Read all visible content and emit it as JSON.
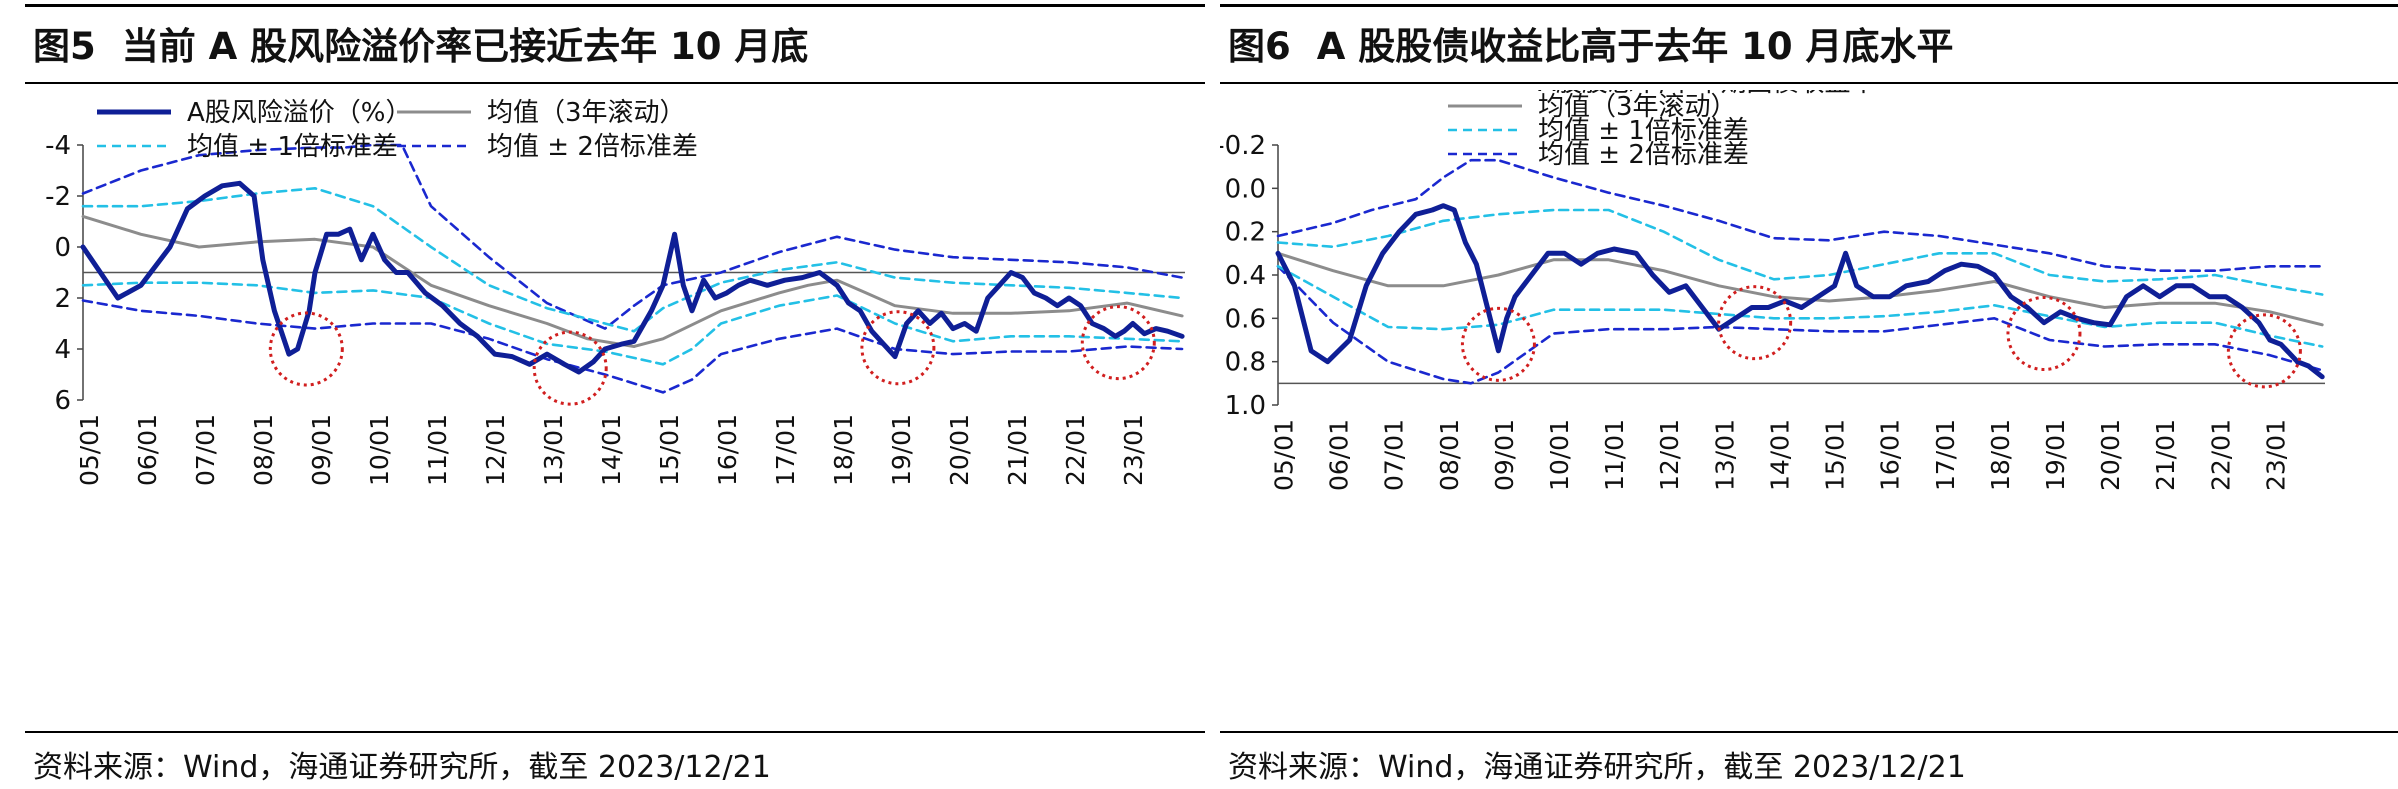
{
  "figures": [
    {
      "number": "图5",
      "title": "当前 A 股风险溢价率已接近去年 10 月底",
      "source": "资料来源：Wind，海通证券研究所，截至 2023/12/21"
    },
    {
      "number": "图6",
      "title": "A 股股债收益比高于去年 10 月底水平",
      "source": "资料来源：Wind，海通证券研究所，截至 2023/12/21"
    }
  ],
  "chart_data": [
    {
      "type": "line",
      "title": "当前 A 股风险溢价率已接近去年 10 月底",
      "y_inverted": true,
      "ylim": [
        -4,
        6
      ],
      "yticks": [
        -4,
        -2,
        0,
        2,
        4,
        6
      ],
      "ytick_labels": [
        "-4",
        "-2",
        "0",
        "2",
        "4",
        "6"
      ],
      "reference_line": 1,
      "xlim": [
        2005,
        2024
      ],
      "xtick_labels": [
        "05/01",
        "06/01",
        "07/01",
        "08/01",
        "09/01",
        "10/01",
        "11/01",
        "12/01",
        "13/01",
        "14/01",
        "15/01",
        "16/01",
        "17/01",
        "18/01",
        "19/01",
        "20/01",
        "21/01",
        "22/01",
        "23/01"
      ],
      "colors": {
        "main": "#0f1f96",
        "mean": "#8c8c8c",
        "sd1": "#23c0e6",
        "sd2": "#1a28cf",
        "circle": "#d11f1f"
      },
      "highlight_circles": [
        {
          "x": 2008.85,
          "y": 4.0
        },
        {
          "x": 2013.4,
          "y": 4.75
        },
        {
          "x": 2019.05,
          "y": 3.95
        },
        {
          "x": 2022.85,
          "y": 3.75
        }
      ],
      "series": [
        {
          "name": "A股风险溢价（%）",
          "role": "main",
          "x": [
            2005.0,
            2005.3,
            2005.6,
            2006.0,
            2006.5,
            2006.8,
            2007.1,
            2007.4,
            2007.7,
            2007.95,
            2008.1,
            2008.3,
            2008.55,
            2008.7,
            2008.9,
            2009.0,
            2009.2,
            2009.4,
            2009.6,
            2009.8,
            2010.0,
            2010.2,
            2010.4,
            2010.6,
            2010.9,
            2011.2,
            2011.5,
            2011.8,
            2012.1,
            2012.4,
            2012.7,
            2013.0,
            2013.3,
            2013.55,
            2013.8,
            2014.0,
            2014.3,
            2014.5,
            2014.8,
            2015.0,
            2015.2,
            2015.35,
            2015.5,
            2015.7,
            2015.9,
            2016.1,
            2016.3,
            2016.5,
            2016.8,
            2017.1,
            2017.4,
            2017.7,
            2018.0,
            2018.2,
            2018.4,
            2018.6,
            2018.8,
            2019.0,
            2019.2,
            2019.4,
            2019.6,
            2019.8,
            2020.0,
            2020.2,
            2020.4,
            2020.6,
            2020.8,
            2021.0,
            2021.2,
            2021.4,
            2021.6,
            2021.8,
            2022.0,
            2022.2,
            2022.4,
            2022.6,
            2022.8,
            2022.95,
            2023.1,
            2023.3,
            2023.5,
            2023.7,
            2023.95
          ],
          "y": [
            0.0,
            1.0,
            2.0,
            1.5,
            0.0,
            -1.5,
            -2.0,
            -2.4,
            -2.5,
            -2.0,
            0.5,
            2.5,
            4.2,
            4.0,
            2.5,
            1.0,
            -0.5,
            -0.5,
            -0.7,
            0.5,
            -0.5,
            0.5,
            1.0,
            1.0,
            1.8,
            2.3,
            3.0,
            3.5,
            4.2,
            4.3,
            4.6,
            4.2,
            4.6,
            4.9,
            4.5,
            4.0,
            3.8,
            3.7,
            2.5,
            1.5,
            -0.5,
            1.5,
            2.5,
            1.3,
            2.0,
            1.8,
            1.5,
            1.3,
            1.5,
            1.3,
            1.2,
            1.0,
            1.5,
            2.2,
            2.5,
            3.3,
            3.8,
            4.3,
            3.0,
            2.5,
            3.0,
            2.6,
            3.2,
            3.0,
            3.3,
            2.0,
            1.5,
            1.0,
            1.2,
            1.8,
            2.0,
            2.3,
            2.0,
            2.3,
            3.0,
            3.2,
            3.5,
            3.3,
            3.0,
            3.4,
            3.2,
            3.3,
            3.5
          ]
        },
        {
          "name": "均值（3年滚动）",
          "role": "mean",
          "x": [
            2005.0,
            2006.0,
            2007.0,
            2008.0,
            2009.0,
            2010.0,
            2011.0,
            2012.0,
            2013.0,
            2013.7,
            2014.5,
            2015.0,
            2016.0,
            2017.0,
            2017.5,
            2018.0,
            2018.5,
            2019.0,
            2020.0,
            2021.0,
            2022.0,
            2023.0,
            2023.95
          ],
          "y": [
            -1.2,
            -0.5,
            0.0,
            -0.2,
            -0.3,
            0.0,
            1.5,
            2.3,
            3.0,
            3.6,
            3.9,
            3.6,
            2.5,
            1.8,
            1.5,
            1.3,
            1.8,
            2.3,
            2.6,
            2.6,
            2.5,
            2.2,
            2.7
          ]
        },
        {
          "name": "均值±1倍标准差",
          "role": "sd1-upper",
          "x": [
            2005.0,
            2006.0,
            2007.0,
            2008.0,
            2009.0,
            2010.0,
            2011.0,
            2012.0,
            2013.0,
            2014.0,
            2014.5,
            2015.0,
            2016.0,
            2017.0,
            2018.0,
            2019.0,
            2020.0,
            2021.0,
            2022.0,
            2023.0,
            2023.95
          ],
          "y": [
            -1.6,
            -1.6,
            -1.8,
            -2.1,
            -2.3,
            -1.6,
            0.0,
            1.5,
            2.4,
            3.0,
            3.3,
            2.4,
            1.4,
            0.9,
            0.6,
            1.2,
            1.4,
            1.5,
            1.6,
            1.8,
            2.0
          ]
        },
        {
          "name": "均值±1倍标准差",
          "role": "sd1-lower",
          "x": [
            2005.0,
            2006.0,
            2007.0,
            2008.0,
            2009.0,
            2010.0,
            2011.0,
            2012.0,
            2013.0,
            2014.0,
            2015.0,
            2015.5,
            2016.0,
            2017.0,
            2018.0,
            2019.0,
            2020.0,
            2021.0,
            2022.0,
            2023.0,
            2023.95
          ],
          "y": [
            1.5,
            1.4,
            1.4,
            1.5,
            1.8,
            1.7,
            2.0,
            3.0,
            3.8,
            4.1,
            4.6,
            4.0,
            3.0,
            2.3,
            1.9,
            3.0,
            3.7,
            3.5,
            3.5,
            3.6,
            3.7
          ]
        },
        {
          "name": "均值±2倍标准差",
          "role": "sd2-upper",
          "x": [
            2005.0,
            2006.0,
            2007.0,
            2008.0,
            2009.0,
            2009.5,
            2010.0,
            2010.5,
            2011.0,
            2012.0,
            2013.0,
            2013.5,
            2014.0,
            2014.5,
            2015.0,
            2016.0,
            2017.0,
            2018.0,
            2019.0,
            2020.0,
            2021.0,
            2022.0,
            2023.0,
            2023.95
          ],
          "y": [
            -2.1,
            -3.0,
            -3.6,
            -3.8,
            -3.9,
            -3.9,
            -4.0,
            -4.0,
            -1.6,
            0.4,
            2.2,
            2.7,
            3.2,
            2.3,
            1.5,
            1.0,
            0.2,
            -0.4,
            0.1,
            0.4,
            0.5,
            0.6,
            0.8,
            1.2
          ]
        },
        {
          "name": "均值±2倍标准差",
          "role": "sd2-lower",
          "x": [
            2005.0,
            2006.0,
            2007.0,
            2008.0,
            2009.0,
            2010.0,
            2011.0,
            2012.0,
            2013.0,
            2014.0,
            2015.0,
            2015.5,
            2016.0,
            2017.0,
            2018.0,
            2019.0,
            2020.0,
            2021.0,
            2022.0,
            2023.0,
            2023.95
          ],
          "y": [
            2.1,
            2.5,
            2.7,
            3.0,
            3.2,
            3.0,
            3.0,
            3.6,
            4.4,
            5.0,
            5.7,
            5.2,
            4.2,
            3.6,
            3.2,
            4.0,
            4.2,
            4.1,
            4.1,
            3.9,
            4.0
          ]
        }
      ],
      "legend": [
        {
          "label": "A股风险溢价（%）",
          "style": "main"
        },
        {
          "label": "均值（3年滚动）",
          "style": "mean"
        },
        {
          "label": "均值 ± 1倍标准差",
          "style": "sd1"
        },
        {
          "label": "均值 ± 2倍标准差",
          "style": "sd2"
        }
      ]
    },
    {
      "type": "line",
      "title": "A 股股债收益比高于去年 10 月底水平",
      "y_inverted": true,
      "ylim": [
        -0.2,
        1.0
      ],
      "yticks": [
        -0.2,
        0.0,
        0.2,
        0.4,
        0.6,
        0.8,
        1.0
      ],
      "ytick_labels": [
        "-0.2",
        "0.0",
        "0.2",
        "0.4",
        "0.6",
        "0.8",
        "1.0"
      ],
      "reference_line": 0.9,
      "xlim": [
        2005,
        2024
      ],
      "xtick_labels": [
        "05/01",
        "06/01",
        "07/01",
        "08/01",
        "09/01",
        "10/01",
        "11/01",
        "12/01",
        "13/01",
        "14/01",
        "15/01",
        "16/01",
        "17/01",
        "18/01",
        "19/01",
        "20/01",
        "21/01",
        "22/01",
        "23/01"
      ],
      "colors": {
        "main": "#0f1f96",
        "mean": "#8c8c8c",
        "sd1": "#23c0e6",
        "sd2": "#1a28cf",
        "circle": "#d11f1f"
      },
      "highlight_circles": [
        {
          "x": 2009.0,
          "y": 0.72
        },
        {
          "x": 2013.65,
          "y": 0.62
        },
        {
          "x": 2018.9,
          "y": 0.67
        },
        {
          "x": 2022.9,
          "y": 0.75
        }
      ],
      "series": [
        {
          "name": "A股股息率/十年期国债收益率",
          "role": "main",
          "x": [
            2005.0,
            2005.3,
            2005.6,
            2005.9,
            2006.3,
            2006.6,
            2006.9,
            2007.2,
            2007.5,
            2007.8,
            2008.0,
            2008.2,
            2008.4,
            2008.6,
            2008.8,
            2009.0,
            2009.15,
            2009.3,
            2009.6,
            2009.9,
            2010.2,
            2010.5,
            2010.8,
            2011.1,
            2011.5,
            2011.8,
            2012.1,
            2012.4,
            2012.7,
            2013.0,
            2013.3,
            2013.6,
            2013.9,
            2014.2,
            2014.5,
            2014.8,
            2015.1,
            2015.3,
            2015.5,
            2015.8,
            2016.1,
            2016.4,
            2016.8,
            2017.1,
            2017.4,
            2017.7,
            2018.0,
            2018.3,
            2018.6,
            2018.9,
            2019.2,
            2019.5,
            2019.8,
            2020.1,
            2020.4,
            2020.7,
            2021.0,
            2021.3,
            2021.6,
            2021.9,
            2022.2,
            2022.5,
            2022.8,
            2023.0,
            2023.2,
            2023.5,
            2023.7,
            2023.95
          ],
          "y": [
            0.3,
            0.45,
            0.75,
            0.8,
            0.7,
            0.45,
            0.3,
            0.2,
            0.12,
            0.1,
            0.08,
            0.1,
            0.25,
            0.35,
            0.55,
            0.75,
            0.6,
            0.5,
            0.4,
            0.3,
            0.3,
            0.35,
            0.3,
            0.28,
            0.3,
            0.4,
            0.48,
            0.45,
            0.55,
            0.65,
            0.6,
            0.55,
            0.55,
            0.52,
            0.55,
            0.5,
            0.45,
            0.3,
            0.45,
            0.5,
            0.5,
            0.45,
            0.43,
            0.38,
            0.35,
            0.36,
            0.4,
            0.5,
            0.55,
            0.62,
            0.57,
            0.6,
            0.62,
            0.63,
            0.5,
            0.45,
            0.5,
            0.45,
            0.45,
            0.5,
            0.5,
            0.55,
            0.62,
            0.7,
            0.72,
            0.8,
            0.82,
            0.87
          ]
        },
        {
          "name": "均值（3年滚动）",
          "role": "mean",
          "x": [
            2005.0,
            2006.0,
            2007.0,
            2008.0,
            2009.0,
            2010.0,
            2011.0,
            2012.0,
            2013.0,
            2014.0,
            2015.0,
            2016.0,
            2017.0,
            2018.0,
            2019.0,
            2020.0,
            2021.0,
            2022.0,
            2023.0,
            2023.95
          ],
          "y": [
            0.3,
            0.38,
            0.45,
            0.45,
            0.4,
            0.33,
            0.33,
            0.38,
            0.45,
            0.5,
            0.52,
            0.5,
            0.47,
            0.43,
            0.5,
            0.55,
            0.53,
            0.53,
            0.57,
            0.63
          ]
        },
        {
          "name": "均值±1倍标准差",
          "role": "sd1-upper",
          "x": [
            2005.0,
            2006.0,
            2007.0,
            2008.0,
            2009.0,
            2010.0,
            2011.0,
            2012.0,
            2013.0,
            2014.0,
            2015.0,
            2016.0,
            2017.0,
            2018.0,
            2019.0,
            2020.0,
            2021.0,
            2022.0,
            2023.0,
            2023.95
          ],
          "y": [
            0.25,
            0.27,
            0.22,
            0.15,
            0.12,
            0.1,
            0.1,
            0.2,
            0.33,
            0.42,
            0.4,
            0.35,
            0.3,
            0.3,
            0.4,
            0.43,
            0.42,
            0.4,
            0.45,
            0.49
          ]
        },
        {
          "name": "均值±1倍标准差",
          "role": "sd1-lower",
          "x": [
            2005.0,
            2006.0,
            2007.0,
            2008.0,
            2009.0,
            2010.0,
            2011.0,
            2012.0,
            2013.0,
            2014.0,
            2015.0,
            2016.0,
            2017.0,
            2018.0,
            2019.0,
            2020.0,
            2021.0,
            2022.0,
            2023.0,
            2023.95
          ],
          "y": [
            0.36,
            0.5,
            0.64,
            0.65,
            0.63,
            0.56,
            0.56,
            0.56,
            0.58,
            0.6,
            0.6,
            0.59,
            0.57,
            0.54,
            0.59,
            0.64,
            0.62,
            0.62,
            0.68,
            0.73
          ]
        },
        {
          "name": "均值±2倍标准差",
          "role": "sd2-upper",
          "x": [
            2005.0,
            2006.0,
            2006.7,
            2007.5,
            2008.0,
            2008.5,
            2009.0,
            2010.0,
            2011.0,
            2012.0,
            2013.0,
            2014.0,
            2015.0,
            2016.0,
            2017.0,
            2018.0,
            2019.0,
            2020.0,
            2021.0,
            2022.0,
            2023.0,
            2023.95
          ],
          "y": [
            0.22,
            0.16,
            0.1,
            0.05,
            -0.05,
            -0.13,
            -0.13,
            -0.05,
            0.02,
            0.08,
            0.15,
            0.23,
            0.24,
            0.2,
            0.22,
            0.26,
            0.3,
            0.36,
            0.38,
            0.38,
            0.36,
            0.36
          ]
        },
        {
          "name": "均值±2倍标准差",
          "role": "sd2-lower",
          "x": [
            2005.0,
            2006.0,
            2007.0,
            2008.0,
            2008.5,
            2009.0,
            2010.0,
            2011.0,
            2012.0,
            2013.0,
            2014.0,
            2015.0,
            2016.0,
            2017.0,
            2018.0,
            2019.0,
            2020.0,
            2021.0,
            2022.0,
            2023.0,
            2023.95
          ],
          "y": [
            0.36,
            0.62,
            0.8,
            0.88,
            0.9,
            0.85,
            0.67,
            0.65,
            0.65,
            0.64,
            0.65,
            0.66,
            0.66,
            0.63,
            0.6,
            0.7,
            0.73,
            0.72,
            0.72,
            0.77,
            0.84
          ]
        }
      ],
      "legend": [
        {
          "label": "A股股息率/十年期国债收益率",
          "style": "main"
        },
        {
          "label": "均值（3年滚动）",
          "style": "mean"
        },
        {
          "label": "均值 ± 1倍标准差",
          "style": "sd1"
        },
        {
          "label": "均值 ± 2倍标准差",
          "style": "sd2"
        }
      ]
    }
  ]
}
